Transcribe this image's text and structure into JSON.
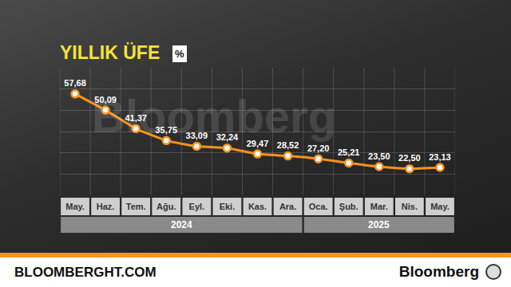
{
  "chart_data": {
    "type": "line",
    "title": "YILLIK ÜFE",
    "unit": "%",
    "categories": [
      "May.",
      "Haz.",
      "Tem.",
      "Ağu.",
      "Eyl.",
      "Eki.",
      "Kas.",
      "Ara.",
      "Oca.",
      "Şub.",
      "Mar.",
      "Nis.",
      "May."
    ],
    "x_groups": [
      {
        "label": "2024",
        "count": 8
      },
      {
        "label": "2025",
        "count": 5
      }
    ],
    "values": [
      57.68,
      50.09,
      41.37,
      35.75,
      33.09,
      32.24,
      29.47,
      28.52,
      27.2,
      25.21,
      23.5,
      22.5,
      23.13
    ],
    "value_labels": [
      "57,68",
      "50,09",
      "41,37",
      "35,75",
      "33,09",
      "32,24",
      "29,47",
      "28,52",
      "27,20",
      "25,21",
      "23,50",
      "22,50",
      "23,13"
    ],
    "color": "#f7931e",
    "marker": "circle",
    "line_style": "solid",
    "data_labels": true,
    "tick_labels": "x",
    "grid": true,
    "ylim": [
      10,
      70
    ],
    "yticks": [
      10,
      20,
      30,
      40,
      50,
      60,
      70
    ],
    "annotations": [
      "Bloomberg"
    ],
    "source": "BLOOMBERGHT.COM",
    "logo": "Bloomberg"
  }
}
